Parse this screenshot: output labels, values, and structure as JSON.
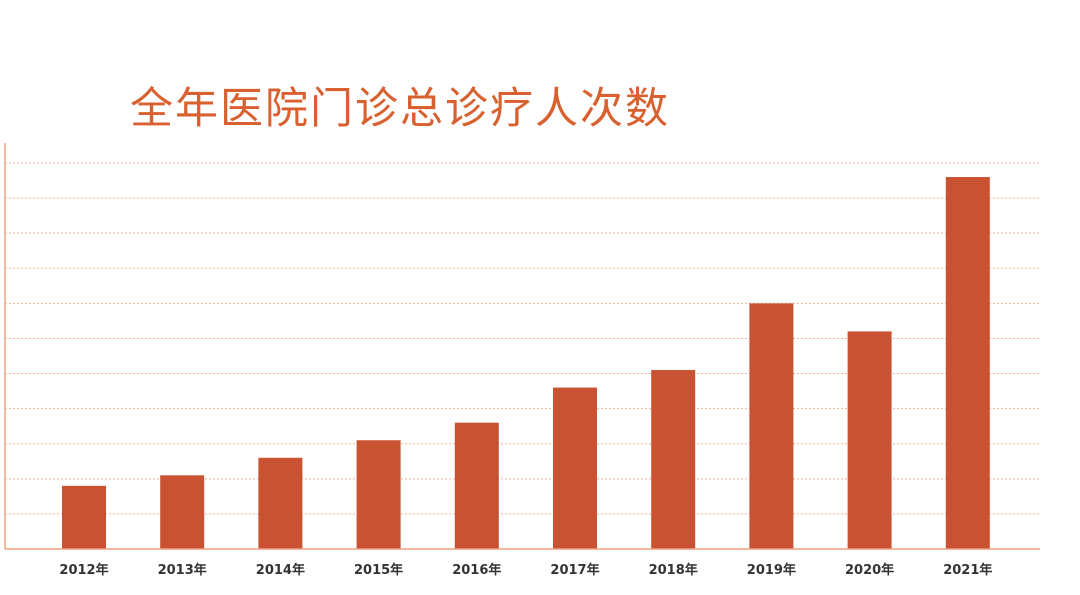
{
  "chart_data": {
    "type": "bar",
    "title": "全年医院门诊总诊疗人次数",
    "categories": [
      "2012年",
      "2013年",
      "2014年",
      "2015年",
      "2016年",
      "2017年",
      "2018年",
      "2019年",
      "2020年",
      "2021年"
    ],
    "values": [
      0.9,
      1.05,
      1.3,
      1.55,
      1.8,
      2.3,
      2.55,
      3.5,
      3.1,
      5.3
    ],
    "xlabel": "",
    "ylabel": "",
    "ylim": [
      0,
      5.5
    ],
    "grid": true,
    "legend": "none"
  },
  "colors": {
    "bar": "#c95232",
    "title": "#d9602f",
    "grid": "#f2b39a",
    "axis": "#f0a080",
    "tick_text": "#333333"
  }
}
